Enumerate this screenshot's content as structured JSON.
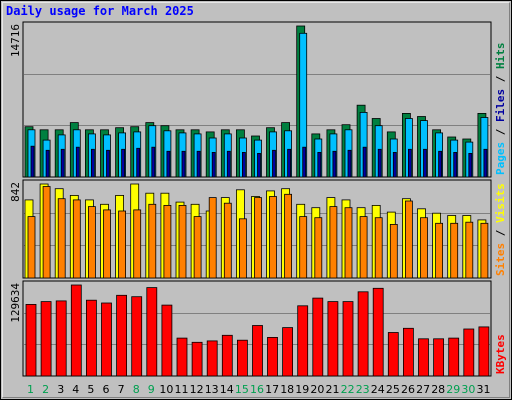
{
  "chart_data": {
    "type": "bar",
    "title": "Daily usage for March 2025",
    "categories": [
      "1",
      "2",
      "3",
      "4",
      "5",
      "6",
      "7",
      "8",
      "9",
      "10",
      "11",
      "12",
      "13",
      "14",
      "15",
      "16",
      "17",
      "18",
      "19",
      "20",
      "21",
      "22",
      "23",
      "24",
      "25",
      "26",
      "27",
      "28",
      "29",
      "30",
      "31"
    ],
    "weekend_days": [
      "1",
      "2",
      "8",
      "9",
      "15",
      "16",
      "22",
      "23",
      "29",
      "30"
    ],
    "panels": [
      {
        "id": "hits",
        "max_label": "14716",
        "ymax": 14716,
        "ylabel_parts": [
          "Pages",
          " / ",
          "Files",
          " / ",
          "Hits"
        ],
        "series": [
          {
            "name": "Hits",
            "color": "#008040",
            "values": [
              4900,
              4600,
              4600,
              5300,
              4600,
              4600,
              4800,
              4900,
              5300,
              5000,
              4600,
              4600,
              4400,
              4600,
              4600,
              4000,
              4800,
              5300,
              14716,
              4200,
              4600,
              5100,
              7000,
              5700,
              4400,
              6200,
              5900,
              4600,
              3900,
              3700,
              6200
            ]
          },
          {
            "name": "Files",
            "color": "#00c0ff",
            "values": [
              4600,
              3600,
              4100,
              4600,
              4200,
              4100,
              4300,
              4400,
              5000,
              4500,
              4300,
              4200,
              3800,
              4200,
              3800,
              3600,
              4400,
              4500,
              14000,
              3700,
              4200,
              4600,
              6300,
              5000,
              3700,
              5700,
              5500,
              4300,
              3600,
              3400,
              5800
            ]
          },
          {
            "name": "Pages",
            "color": "#0000a0",
            "values": [
              3000,
              2600,
              2700,
              2900,
              2700,
              2600,
              2700,
              2800,
              2900,
              2500,
              2500,
              2500,
              2400,
              2500,
              2400,
              2300,
              2600,
              2700,
              2900,
              2400,
              2500,
              2600,
              2900,
              2700,
              2400,
              2700,
              2700,
              2500,
              2400,
              2300,
              2700
            ]
          }
        ]
      },
      {
        "id": "sites",
        "max_label": "842",
        "ymax": 842,
        "ylabel_parts": [
          "Sites",
          " / ",
          "Visits"
        ],
        "series": [
          {
            "name": "Visits",
            "color": "#ffff00",
            "values": [
              700,
              842,
              800,
              740,
              700,
              660,
              740,
              842,
              760,
              760,
              680,
              660,
              600,
              720,
              790,
              730,
              780,
              800,
              660,
              630,
              720,
              700,
              630,
              650,
              590,
              710,
              620,
              580,
              560,
              560,
              520
            ]
          },
          {
            "name": "Sites",
            "color": "#ff8000",
            "values": [
              550,
              820,
              710,
              700,
              640,
              610,
              600,
              610,
              660,
              650,
              650,
              550,
              720,
              670,
              530,
              720,
              730,
              750,
              550,
              540,
              640,
              630,
              550,
              540,
              480,
              690,
              540,
              490,
              490,
              500,
              490
            ]
          }
        ]
      },
      {
        "id": "kbytes",
        "max_label": "129634",
        "ymax": 129634,
        "ylabel_parts": [
          "KBytes"
        ],
        "series": [
          {
            "name": "KBytes",
            "color": "#ff0000",
            "values": [
              102000,
              106000,
              107000,
              129634,
              108000,
              104000,
              115000,
              113000,
              126000,
              101000,
              54000,
              48000,
              50000,
              58000,
              51000,
              72000,
              55000,
              69000,
              100000,
              111000,
              106000,
              106000,
              120000,
              125000,
              62000,
              68000,
              53000,
              53000,
              54000,
              67000,
              70000
            ]
          }
        ]
      }
    ]
  }
}
